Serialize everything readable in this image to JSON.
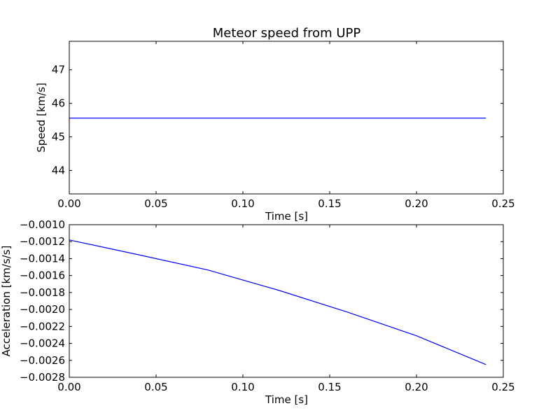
{
  "chart_data": [
    {
      "type": "line",
      "title": "Meteor speed from UPP",
      "xlabel": "Time [s]",
      "ylabel": "Speed [km/s]",
      "xlim": [
        0.0,
        0.25
      ],
      "ylim": [
        43.3,
        47.85
      ],
      "xticks": [
        0.0,
        0.05,
        0.1,
        0.15,
        0.2,
        0.25
      ],
      "xtick_labels": [
        "0.00",
        "0.05",
        "0.10",
        "0.15",
        "0.20",
        "0.25"
      ],
      "yticks": [
        44,
        45,
        46,
        47
      ],
      "ytick_labels": [
        "44",
        "45",
        "46",
        "47"
      ],
      "grid": false,
      "series": [
        {
          "color": "#0000ff",
          "x": [
            0.0,
            0.24
          ],
          "y": [
            45.56,
            45.56
          ]
        }
      ]
    },
    {
      "type": "line",
      "title": "",
      "xlabel": "Time [s]",
      "ylabel": "Acceleration [km/s/s]",
      "xlim": [
        0.0,
        0.25
      ],
      "ylim": [
        -0.0028,
        -0.001
      ],
      "xticks": [
        0.0,
        0.05,
        0.1,
        0.15,
        0.2,
        0.25
      ],
      "xtick_labels": [
        "0.00",
        "0.05",
        "0.10",
        "0.15",
        "0.20",
        "0.25"
      ],
      "yticks": [
        -0.001,
        -0.0012,
        -0.0014,
        -0.0016,
        -0.0018,
        -0.002,
        -0.0022,
        -0.0024,
        -0.0026,
        -0.0028
      ],
      "ytick_labels": [
        "−0.0010",
        "−0.0012",
        "−0.0014",
        "−0.0016",
        "−0.0018",
        "−0.0020",
        "−0.0022",
        "−0.0024",
        "−0.0026",
        "−0.0028"
      ],
      "grid": false,
      "series": [
        {
          "color": "#0000ff",
          "x": [
            0.0,
            0.04,
            0.08,
            0.12,
            0.16,
            0.2,
            0.24
          ],
          "y": [
            -0.00118,
            -0.001355,
            -0.001535,
            -0.00177,
            -0.00203,
            -0.00231,
            -0.00265
          ]
        }
      ]
    }
  ]
}
